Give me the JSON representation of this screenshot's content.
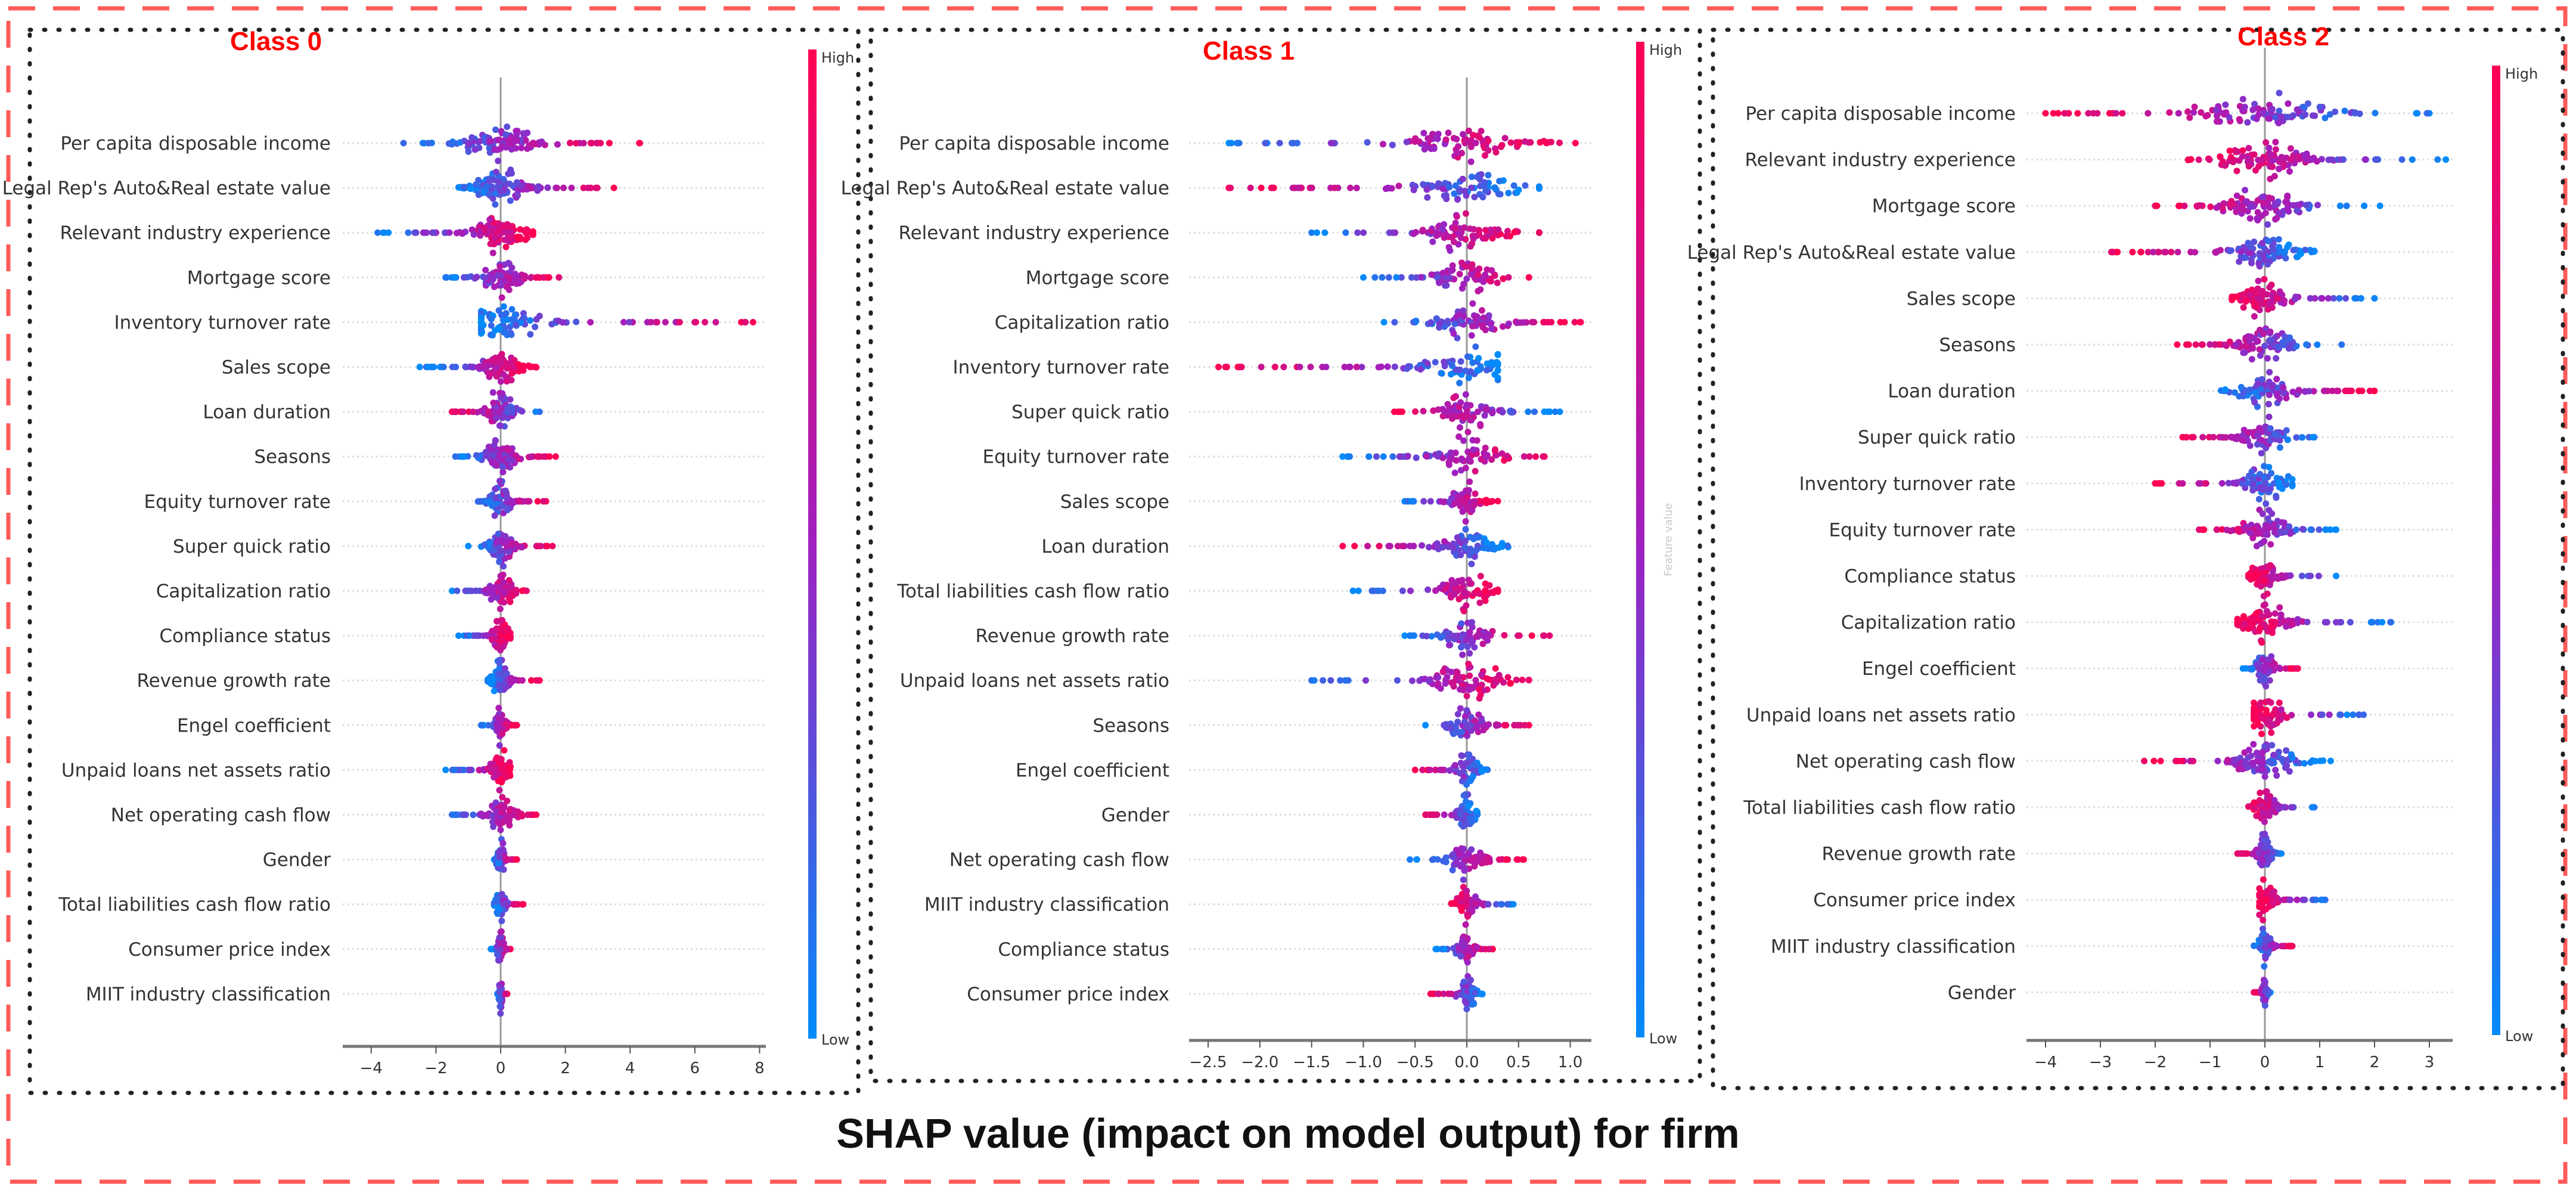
{
  "main_title": "SHAP value (impact on model output) for firm",
  "colors": {
    "low": "#008bfb",
    "high": "#ff0052",
    "outer_border": "#ff5a5a",
    "panel_border": "#222222"
  },
  "chart_data": [
    {
      "type": "scatter",
      "subtype": "shap-beeswarm",
      "title": "Class 0",
      "xlabel": "",
      "xlim": [
        -4.5,
        8.3
      ],
      "xticks": [
        -4,
        -2,
        0,
        2,
        4,
        6,
        8
      ],
      "tick_labels": [
        "−4",
        "−2",
        "0",
        "2",
        "4",
        "6",
        "8"
      ],
      "colorbar": {
        "high": "High",
        "low": "Low",
        "label": ""
      },
      "features": [
        {
          "name": "Per capita disposable income",
          "min": -3.0,
          "max": 4.3,
          "high_side": "right"
        },
        {
          "name": "Legal Rep's Auto&Real estate value",
          "min": -1.3,
          "max": 3.5,
          "high_side": "right"
        },
        {
          "name": "Relevant industry experience",
          "min": -3.8,
          "max": 1.0,
          "high_side": "right"
        },
        {
          "name": "Mortgage score",
          "min": -1.7,
          "max": 1.8,
          "high_side": "right"
        },
        {
          "name": "Inventory turnover rate",
          "min": -0.6,
          "max": 7.8,
          "high_side": "right"
        },
        {
          "name": "Sales scope",
          "min": -2.5,
          "max": 1.1,
          "high_side": "right"
        },
        {
          "name": "Loan duration",
          "min": -1.5,
          "max": 1.2,
          "high_side": "left"
        },
        {
          "name": "Seasons",
          "min": -1.4,
          "max": 1.7,
          "high_side": "right"
        },
        {
          "name": "Equity turnover rate",
          "min": -0.7,
          "max": 1.4,
          "high_side": "right"
        },
        {
          "name": "Super quick ratio",
          "min": -1.0,
          "max": 1.6,
          "high_side": "right"
        },
        {
          "name": "Capitalization ratio",
          "min": -1.5,
          "max": 0.8,
          "high_side": "right"
        },
        {
          "name": "Compliance status",
          "min": -1.3,
          "max": 0.3,
          "high_side": "right"
        },
        {
          "name": "Revenue growth rate",
          "min": -0.4,
          "max": 1.2,
          "high_side": "right"
        },
        {
          "name": "Engel coefficient",
          "min": -0.6,
          "max": 0.5,
          "high_side": "right"
        },
        {
          "name": "Unpaid loans net assets ratio",
          "min": -1.7,
          "max": 0.3,
          "high_side": "right"
        },
        {
          "name": "Net operating cash flow",
          "min": -1.5,
          "max": 1.1,
          "high_side": "right"
        },
        {
          "name": "Gender",
          "min": -0.2,
          "max": 0.5,
          "high_side": "right"
        },
        {
          "name": "Total liabilities cash flow ratio",
          "min": -0.2,
          "max": 0.7,
          "high_side": "right"
        },
        {
          "name": "Consumer price index",
          "min": -0.3,
          "max": 0.3,
          "high_side": "right"
        },
        {
          "name": "MIIT industry classification",
          "min": -0.1,
          "max": 0.2,
          "high_side": "right"
        }
      ]
    },
    {
      "type": "scatter",
      "subtype": "shap-beeswarm",
      "title": "Class 1",
      "xlabel": "",
      "xlim": [
        -2.65,
        1.25
      ],
      "xticks": [
        -2.5,
        -2.0,
        -1.5,
        -1.0,
        -0.5,
        0.0,
        0.5,
        1.0
      ],
      "tick_labels": [
        "−2.5",
        "−2.0",
        "−1.5",
        "−1.0",
        "−0.5",
        "0.0",
        "0.5",
        "1.0"
      ],
      "colorbar": {
        "high": "High",
        "low": "Low",
        "label": "Feature value"
      },
      "features": [
        {
          "name": "Per capita disposable income",
          "min": -2.3,
          "max": 1.05,
          "high_side": "right"
        },
        {
          "name": "Legal Rep's Auto&Real estate value",
          "min": -2.3,
          "max": 0.7,
          "high_side": "left"
        },
        {
          "name": "Relevant industry experience",
          "min": -1.5,
          "max": 0.7,
          "high_side": "right"
        },
        {
          "name": "Mortgage score",
          "min": -1.0,
          "max": 0.6,
          "high_side": "right"
        },
        {
          "name": "Capitalization ratio",
          "min": -0.8,
          "max": 1.1,
          "high_side": "right"
        },
        {
          "name": "Inventory turnover rate",
          "min": -2.4,
          "max": 0.3,
          "high_side": "left"
        },
        {
          "name": "Super quick ratio",
          "min": -0.7,
          "max": 0.9,
          "high_side": "left"
        },
        {
          "name": "Equity turnover rate",
          "min": -1.2,
          "max": 0.75,
          "high_side": "right"
        },
        {
          "name": "Sales scope",
          "min": -0.6,
          "max": 0.3,
          "high_side": "right"
        },
        {
          "name": "Loan duration",
          "min": -1.2,
          "max": 0.4,
          "high_side": "left"
        },
        {
          "name": "Total liabilities cash flow ratio",
          "min": -1.1,
          "max": 0.3,
          "high_side": "right"
        },
        {
          "name": "Revenue growth rate",
          "min": -0.6,
          "max": 0.8,
          "high_side": "right"
        },
        {
          "name": "Unpaid loans net assets ratio",
          "min": -1.5,
          "max": 0.6,
          "high_side": "right"
        },
        {
          "name": "Seasons",
          "min": -0.4,
          "max": 0.6,
          "high_side": "right"
        },
        {
          "name": "Engel coefficient",
          "min": -0.5,
          "max": 0.2,
          "high_side": "left"
        },
        {
          "name": "Gender",
          "min": -0.4,
          "max": 0.1,
          "high_side": "left"
        },
        {
          "name": "Net operating cash flow",
          "min": -0.55,
          "max": 0.55,
          "high_side": "right"
        },
        {
          "name": "MIIT industry classification",
          "min": -0.15,
          "max": 0.45,
          "high_side": "left"
        },
        {
          "name": "Compliance status",
          "min": -0.3,
          "max": 0.25,
          "high_side": "right"
        },
        {
          "name": "Consumer price index",
          "min": -0.35,
          "max": 0.15,
          "high_side": "left"
        }
      ]
    },
    {
      "type": "scatter",
      "subtype": "shap-beeswarm",
      "title": "Class 2",
      "xlabel": "",
      "xlim": [
        -4.2,
        3.5
      ],
      "xticks": [
        -4,
        -3,
        -2,
        -1,
        0,
        1,
        2,
        3
      ],
      "tick_labels": [
        "−4",
        "−3",
        "−2",
        "−1",
        "0",
        "1",
        "2",
        "3"
      ],
      "colorbar": {
        "high": "High",
        "low": "Low",
        "label": ""
      },
      "features": [
        {
          "name": "Per capita disposable income",
          "min": -4.0,
          "max": 3.0,
          "high_side": "left"
        },
        {
          "name": "Relevant industry experience",
          "min": -1.4,
          "max": 3.3,
          "high_side": "left"
        },
        {
          "name": "Mortgage score",
          "min": -2.0,
          "max": 2.1,
          "high_side": "left"
        },
        {
          "name": "Legal Rep's Auto&Real estate value",
          "min": -2.8,
          "max": 0.9,
          "high_side": "left"
        },
        {
          "name": "Sales scope",
          "min": -0.6,
          "max": 2.0,
          "high_side": "left"
        },
        {
          "name": "Seasons",
          "min": -1.6,
          "max": 1.4,
          "high_side": "left"
        },
        {
          "name": "Loan duration",
          "min": -0.8,
          "max": 2.0,
          "high_side": "right"
        },
        {
          "name": "Super quick ratio",
          "min": -1.5,
          "max": 0.9,
          "high_side": "left"
        },
        {
          "name": "Inventory turnover rate",
          "min": -2.0,
          "max": 0.5,
          "high_side": "left"
        },
        {
          "name": "Equity turnover rate",
          "min": -1.2,
          "max": 1.3,
          "high_side": "left"
        },
        {
          "name": "Compliance status",
          "min": -0.3,
          "max": 1.3,
          "high_side": "left"
        },
        {
          "name": "Capitalization ratio",
          "min": -0.5,
          "max": 2.3,
          "high_side": "left"
        },
        {
          "name": "Engel coefficient",
          "min": -0.4,
          "max": 0.6,
          "high_side": "right"
        },
        {
          "name": "Unpaid loans net assets ratio",
          "min": -0.2,
          "max": 1.8,
          "high_side": "left"
        },
        {
          "name": "Net operating cash flow",
          "min": -2.2,
          "max": 1.2,
          "high_side": "left"
        },
        {
          "name": "Total liabilities cash flow ratio",
          "min": -0.3,
          "max": 0.9,
          "high_side": "left"
        },
        {
          "name": "Revenue growth rate",
          "min": -0.5,
          "max": 0.3,
          "high_side": "left"
        },
        {
          "name": "Consumer price index",
          "min": -0.1,
          "max": 1.1,
          "high_side": "left"
        },
        {
          "name": "MIIT industry classification",
          "min": -0.2,
          "max": 0.5,
          "high_side": "right"
        },
        {
          "name": "Gender",
          "min": -0.2,
          "max": 0.1,
          "high_side": "left"
        }
      ]
    }
  ]
}
